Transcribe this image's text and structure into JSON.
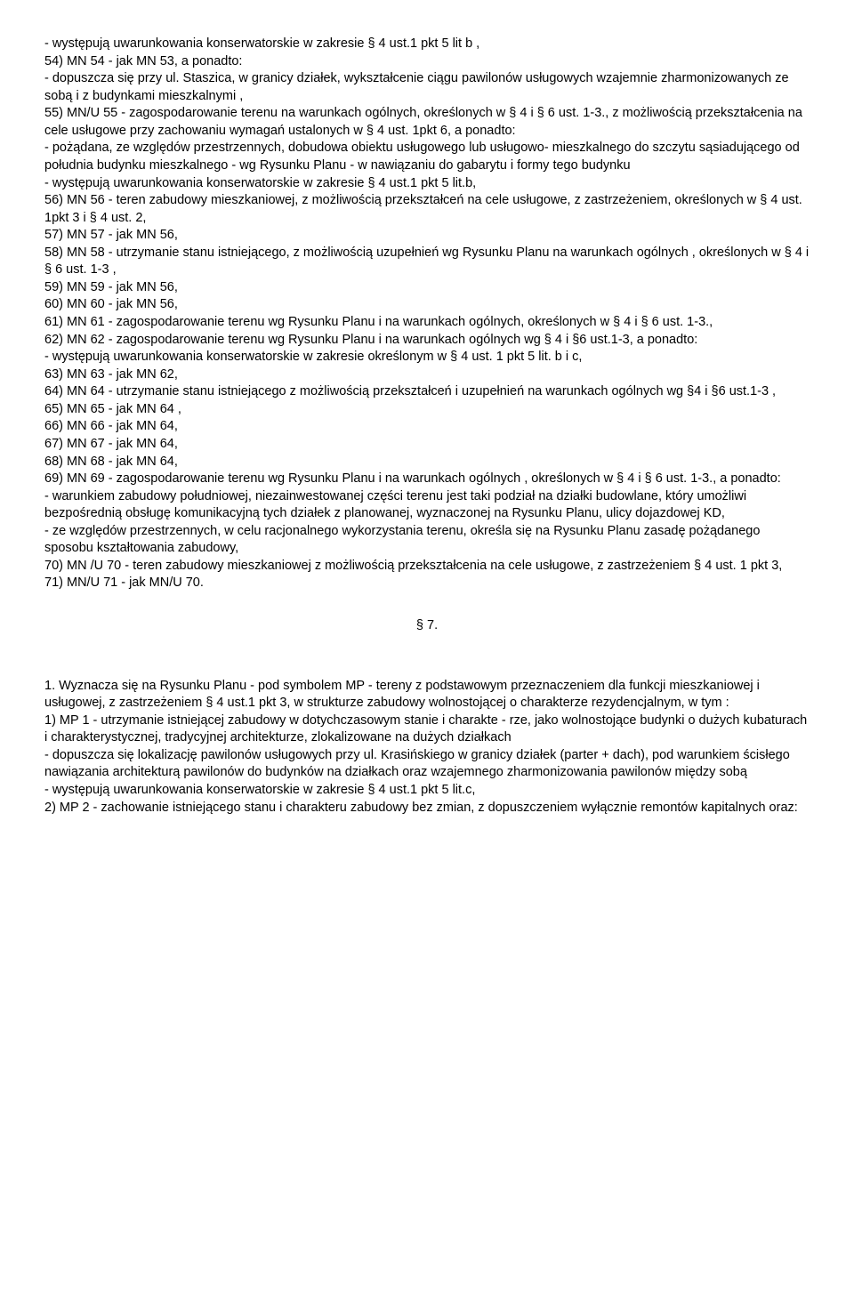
{
  "lines": [
    "- występują  uwarunkowania konserwatorskie w zakresie § 4 ust.1 pkt 5 lit b ,",
    "54)   MN 54  - jak MN 53, a ponadto:",
    "- dopuszcza się przy ul. Staszica, w granicy działek, wykształcenie ciągu pawilonów usługowych wzajemnie zharmonizowanych ze sobą i z budynkami mieszkalnymi ,",
    "55)   MN/U 55  - zagospodarowanie terenu na warunkach ogólnych, określonych w § 4 i § 6 ust. 1-3., z możliwością przekształcenia na cele usługowe przy zachowaniu wymagań ustalonych w § 4 ust. 1pkt 6, a ponadto:",
    "- pożądana, ze względów przestrzennych, dobudowa obiektu usługowego lub usługowo- mieszkalnego do szczytu sąsiadującego od południa budynku mieszkalnego - wg Rysunku Planu - w nawiązaniu do gabarytu i formy tego budynku",
    "-  występują uwarunkowania konserwatorskie w zakresie § 4 ust.1 pkt 5 lit.b,",
    "56)   MN 56 - teren zabudowy mieszkaniowej, z możliwością przekształceń na cele usługowe, z zastrzeżeniem, określonych w § 4 ust. 1pkt 3 i § 4 ust. 2,",
    "57)   MN 57  - jak MN 56,",
    "58)   MN 58  - utrzymanie stanu istniejącego, z możliwością uzupełnień wg Rysunku Planu na warunkach ogólnych , określonych w § 4 i § 6  ust. 1-3 ,",
    "59)   MN 59  - jak MN 56,",
    "60)   MN 60  - jak MN 56,",
    "61)   MN 61  - zagospodarowanie terenu wg Rysunku Planu i na warunkach ogólnych, określonych w § 4 i § 6  ust. 1-3.,",
    "62)   MN 62  - zagospodarowanie terenu wg Rysunku Planu i na warunkach ogólnych wg § 4 i §6 ust.1-3, a ponadto:",
    " - występują uwarunkowania konserwatorskie w zakresie określonym w § 4 ust. 1 pkt 5 lit. b i c,",
    "63)   MN 63  - jak MN 62,",
    "64)   MN 64 - utrzymanie stanu istniejącego z możliwością przekształceń i uzupełnień na warunkach ogólnych wg §4 i §6 ust.1-3 ,",
    "65)   MN 65  - jak MN 64 ,",
    "66)   MN 66  - jak MN 64,",
    "67)   MN 67  - jak MN 64,",
    "68)   MN 68  - jak MN 64,",
    "69)   MN 69  - zagospodarowanie terenu wg Rysunku Planu i na warunkach ogólnych , określonych w § 4 i § 6  ust. 1-3.,  a ponadto:",
    "- warunkiem zabudowy południowej, niezainwestowanej części terenu jest taki podział na działki budowlane, który umożliwi bezpośrednią obsługę komunikacyjną tych działek z planowanej, wyznaczonej na Rysunku Planu, ulicy dojazdowej KD,",
    "- ze względów przestrzennych, w celu racjonalnego wykorzystania terenu, określa się na Rysunku Planu zasadę pożądanego sposobu kształtowania zabudowy,",
    "70)   MN /U 70  -  teren zabudowy mieszkaniowej z możliwością przekształcenia na cele usługowe, z zastrzeżeniem § 4 ust. 1 pkt 3,",
    "71)   MN/U 71  - jak MN/U 70."
  ],
  "section": "§ 7.",
  "lines2": [
    "1. Wyznacza się na Rysunku Planu - pod symbolem  MP  - tereny z podstawowym przeznaczeniem dla funkcji mieszkaniowej i usługowej, z zastrzeżeniem § 4 ust.1 pkt 3, w strukturze zabudowy wolnostojącej o charakterze rezydencjalnym, w tym :",
    "1)   MP 1  - utrzymanie istniejącej zabudowy w dotychczasowym stanie i charakte - rze, jako wolnostojące budynki o dużych kubaturach i charakterystycznej, tradycyjnej architekturze, zlokalizowane na dużych działkach",
    "- dopuszcza się lokalizację pawilonów usługowych przy ul. Krasińskiego w granicy działek (parter + dach), pod warunkiem ścisłego nawiązania architekturą pawilonów do budynków na działkach oraz wzajemnego zharmonizowania pawilonów między sobą",
    "- występują uwarunkowania konserwatorskie w zakresie § 4 ust.1 pkt 5 lit.c,",
    "2)   MP 2  - zachowanie istniejącego stanu i charakteru zabudowy bez zmian,                      z dopuszczeniem wyłącznie remontów kapitalnych oraz:"
  ]
}
